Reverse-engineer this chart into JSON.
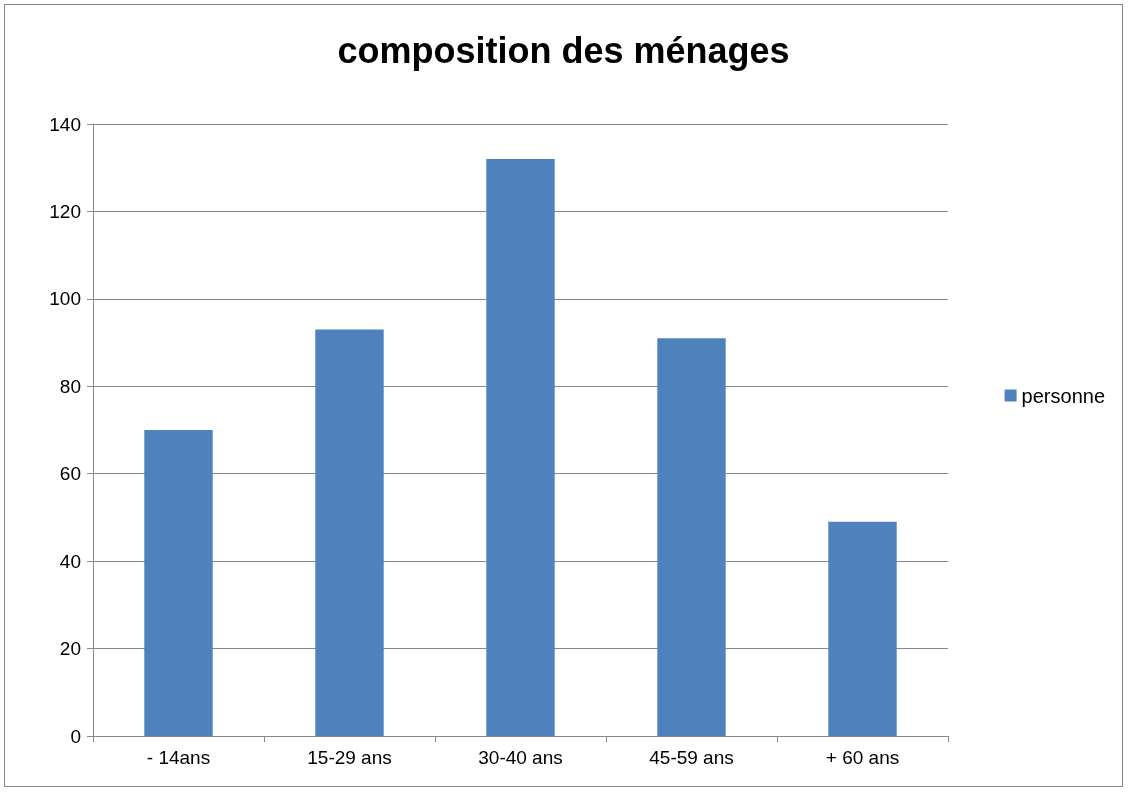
{
  "chart_data": {
    "type": "bar",
    "title": "composition des ménages",
    "categories": [
      "- 14ans",
      "15-29 ans",
      "30-40 ans",
      "45-59 ans",
      "+ 60 ans"
    ],
    "series": [
      {
        "name": "personne",
        "color": "#4f81bd",
        "values": [
          70,
          93,
          132,
          91,
          49
        ]
      }
    ],
    "ylim": [
      0,
      140
    ],
    "yticks": [
      0,
      20,
      40,
      60,
      80,
      100,
      120,
      140
    ],
    "grid": "y",
    "legend": "right"
  }
}
